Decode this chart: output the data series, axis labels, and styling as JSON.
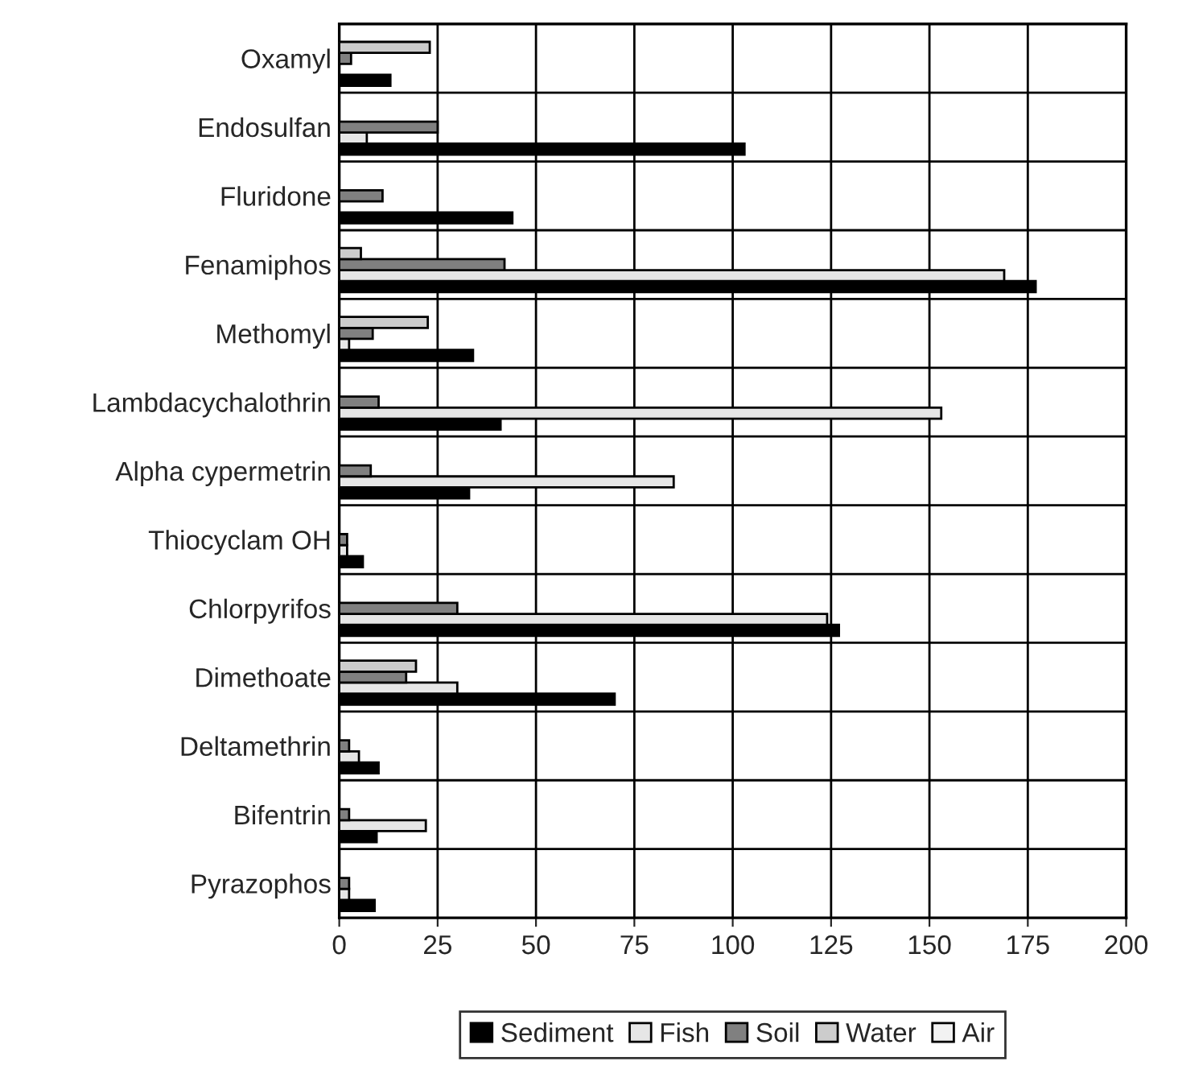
{
  "chart_data": {
    "type": "bar",
    "orientation": "horizontal",
    "categories": [
      "Oxamyl",
      "Endosulfan",
      "Fluridone",
      "Fenamiphos",
      "Methomyl",
      "Lambdacychalothrin",
      "Alpha cypermetrin",
      "Thiocyclam OH",
      "Chlorpyrifos",
      "Dimethoate",
      "Deltamethrin",
      "Bifentrin",
      "Pyrazophos"
    ],
    "series": [
      {
        "name": "Sediment",
        "color": "#000000",
        "values": [
          13,
          103,
          44,
          177,
          34,
          41,
          33,
          6,
          127,
          70,
          10,
          9.5,
          9
        ]
      },
      {
        "name": "Fish",
        "color": "#e6e6e6",
        "values": [
          null,
          7,
          null,
          169,
          2.5,
          153,
          85,
          2,
          124,
          30,
          5,
          22,
          2.5
        ]
      },
      {
        "name": "Soil",
        "color": "#808080",
        "values": [
          3,
          25,
          11,
          42,
          8.5,
          10,
          8,
          2,
          30,
          17,
          2.5,
          2.5,
          2.5
        ]
      },
      {
        "name": "Water",
        "color": "#cccccc",
        "values": [
          23,
          null,
          null,
          5.5,
          22.5,
          null,
          null,
          null,
          null,
          19.5,
          null,
          null,
          null
        ]
      },
      {
        "name": "Air",
        "color": "#f2f2f2",
        "values": [
          null,
          null,
          null,
          null,
          null,
          null,
          null,
          null,
          null,
          null,
          null,
          null,
          null
        ]
      }
    ],
    "xlim": [
      0,
      200
    ],
    "xticks": [
      0,
      25,
      50,
      75,
      100,
      125,
      150,
      175,
      200
    ],
    "grid": true,
    "legend": "bottom"
  }
}
